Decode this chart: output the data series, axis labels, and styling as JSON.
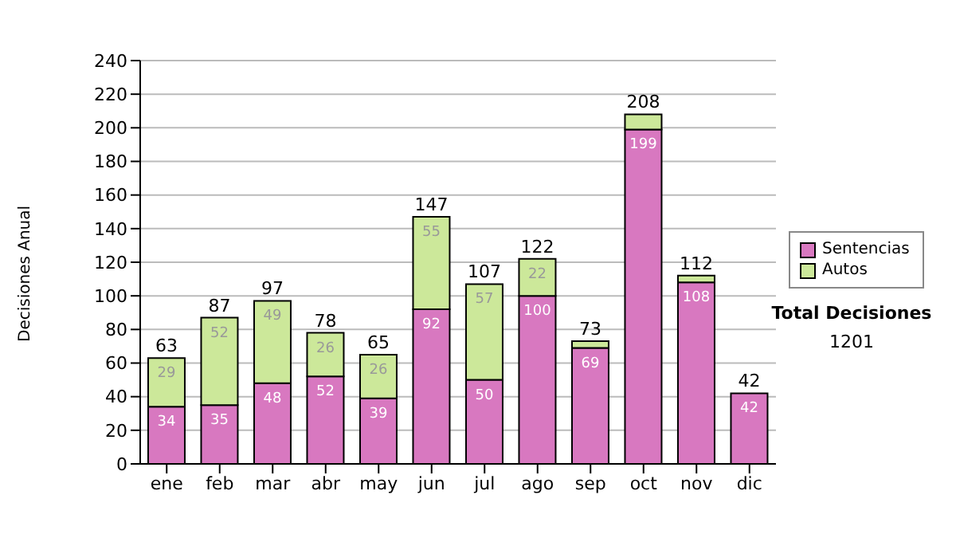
{
  "chart_data": {
    "type": "bar",
    "ylabel": "Decisiones Anual",
    "categories": [
      "ene",
      "feb",
      "mar",
      "abr",
      "may",
      "jun",
      "jul",
      "ago",
      "sep",
      "oct",
      "nov",
      "dic"
    ],
    "stacked": true,
    "series": [
      {
        "name": "Sentencias",
        "color": "#d878c0",
        "values": [
          34,
          35,
          48,
          52,
          39,
          92,
          50,
          100,
          69,
          199,
          108,
          42
        ],
        "value_labels": [
          "34",
          "35",
          "48",
          "52",
          "39",
          "92",
          "50",
          "100",
          "69",
          "199",
          "108",
          "42"
        ]
      },
      {
        "name": "Autos",
        "color": "#cce89a",
        "values": [
          29,
          52,
          49,
          26,
          26,
          55,
          57,
          22,
          4,
          9,
          4,
          0
        ],
        "value_labels": [
          "29",
          "52",
          "49",
          "26",
          "26",
          "55",
          "57",
          "22",
          null,
          null,
          null,
          null
        ]
      }
    ],
    "totals": [
      "63",
      "87",
      "97",
      "78",
      "65",
      "147",
      "107",
      "122",
      "73",
      "208",
      "112",
      "42"
    ],
    "ylim": [
      0,
      240
    ],
    "yticks": [
      0,
      20,
      40,
      60,
      80,
      100,
      120,
      140,
      160,
      180,
      200,
      220,
      240
    ],
    "grid": "y",
    "legend": "right",
    "annotations": [
      "Total Decisiones",
      "1201"
    ]
  }
}
